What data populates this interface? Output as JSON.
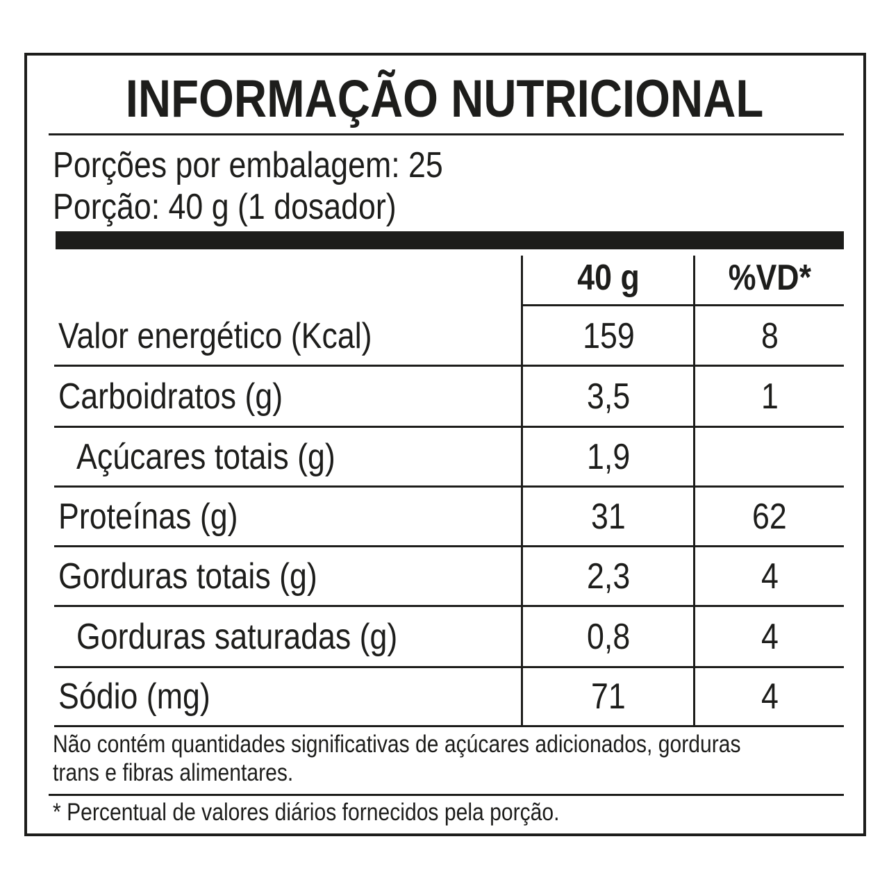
{
  "title": "INFORMAÇÃO NUTRICIONAL",
  "servings_per_package": "Porções por embalagem: 25",
  "serving_size": "Porção: 40 g (1 dosador)",
  "table": {
    "headers": [
      "40 g",
      "%VD*"
    ],
    "rows": [
      {
        "label": "Valor energético (Kcal)",
        "amount": "159",
        "dv": "8",
        "indent": false
      },
      {
        "label": "Carboidratos (g)",
        "amount": "3,5",
        "dv": "1",
        "indent": false
      },
      {
        "label": "Açúcares totais (g)",
        "amount": "1,9",
        "dv": "",
        "indent": true
      },
      {
        "label": "Proteínas (g)",
        "amount": "31",
        "dv": "62",
        "indent": false
      },
      {
        "label": "Gorduras totais (g)",
        "amount": "2,3",
        "dv": "4",
        "indent": false
      },
      {
        "label": "Gorduras saturadas (g)",
        "amount": "0,8",
        "dv": "4",
        "indent": true
      },
      {
        "label": "Sódio (mg)",
        "amount": "71",
        "dv": "4",
        "indent": false
      }
    ]
  },
  "note_line1": "Não contém quantidades significativas de açúcares adicionados, gorduras",
  "note_line2": "trans e fibras alimentares.",
  "footnote": "* Percentual de valores diários fornecidos pela porção.",
  "colors": {
    "ink": "#1d1d1b",
    "background": "#ffffff"
  }
}
